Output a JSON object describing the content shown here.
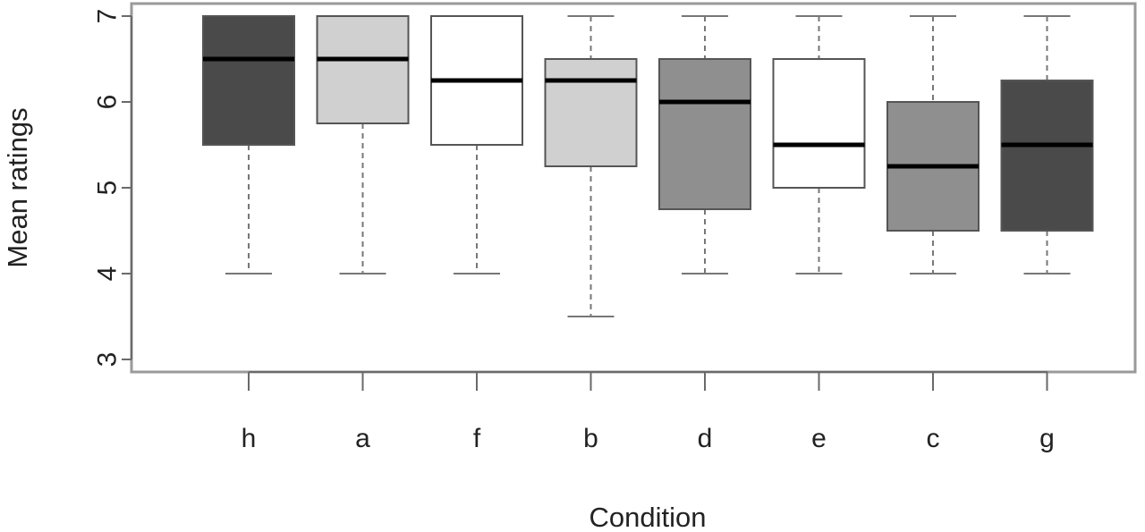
{
  "chart_data": {
    "type": "box",
    "xlabel": "Condition",
    "ylabel": "Mean ratings",
    "ylim": [
      3,
      7
    ],
    "yticks": [
      3,
      4,
      5,
      6,
      7
    ],
    "grid": false,
    "categories": [
      "h",
      "a",
      "f",
      "b",
      "d",
      "e",
      "c",
      "g"
    ],
    "boxes": [
      {
        "category": "h",
        "whisker_low": 4,
        "q1": 5.5,
        "median": 6.5,
        "q3": 7,
        "whisker_high": 7,
        "fill": "#4a4a4a"
      },
      {
        "category": "a",
        "whisker_low": 4,
        "q1": 5.75,
        "median": 6.5,
        "q3": 7,
        "whisker_high": 7,
        "fill": "#d0d0d0"
      },
      {
        "category": "f",
        "whisker_low": 4,
        "q1": 5.5,
        "median": 6.25,
        "q3": 7,
        "whisker_high": 7,
        "fill": "#ffffff"
      },
      {
        "category": "b",
        "whisker_low": 3.5,
        "q1": 5.25,
        "median": 6.25,
        "q3": 6.5,
        "whisker_high": 7,
        "fill": "#d0d0d0"
      },
      {
        "category": "d",
        "whisker_low": 4,
        "q1": 4.75,
        "median": 6,
        "q3": 6.5,
        "whisker_high": 7,
        "fill": "#8f8f8f"
      },
      {
        "category": "e",
        "whisker_low": 4,
        "q1": 5,
        "median": 5.5,
        "q3": 6.5,
        "whisker_high": 7,
        "fill": "#ffffff"
      },
      {
        "category": "c",
        "whisker_low": 4,
        "q1": 4.5,
        "median": 5.25,
        "q3": 6,
        "whisker_high": 7,
        "fill": "#8f8f8f"
      },
      {
        "category": "g",
        "whisker_low": 4,
        "q1": 4.5,
        "median": 5.5,
        "q3": 6.25,
        "whisker_high": 7,
        "fill": "#4a4a4a"
      }
    ]
  }
}
